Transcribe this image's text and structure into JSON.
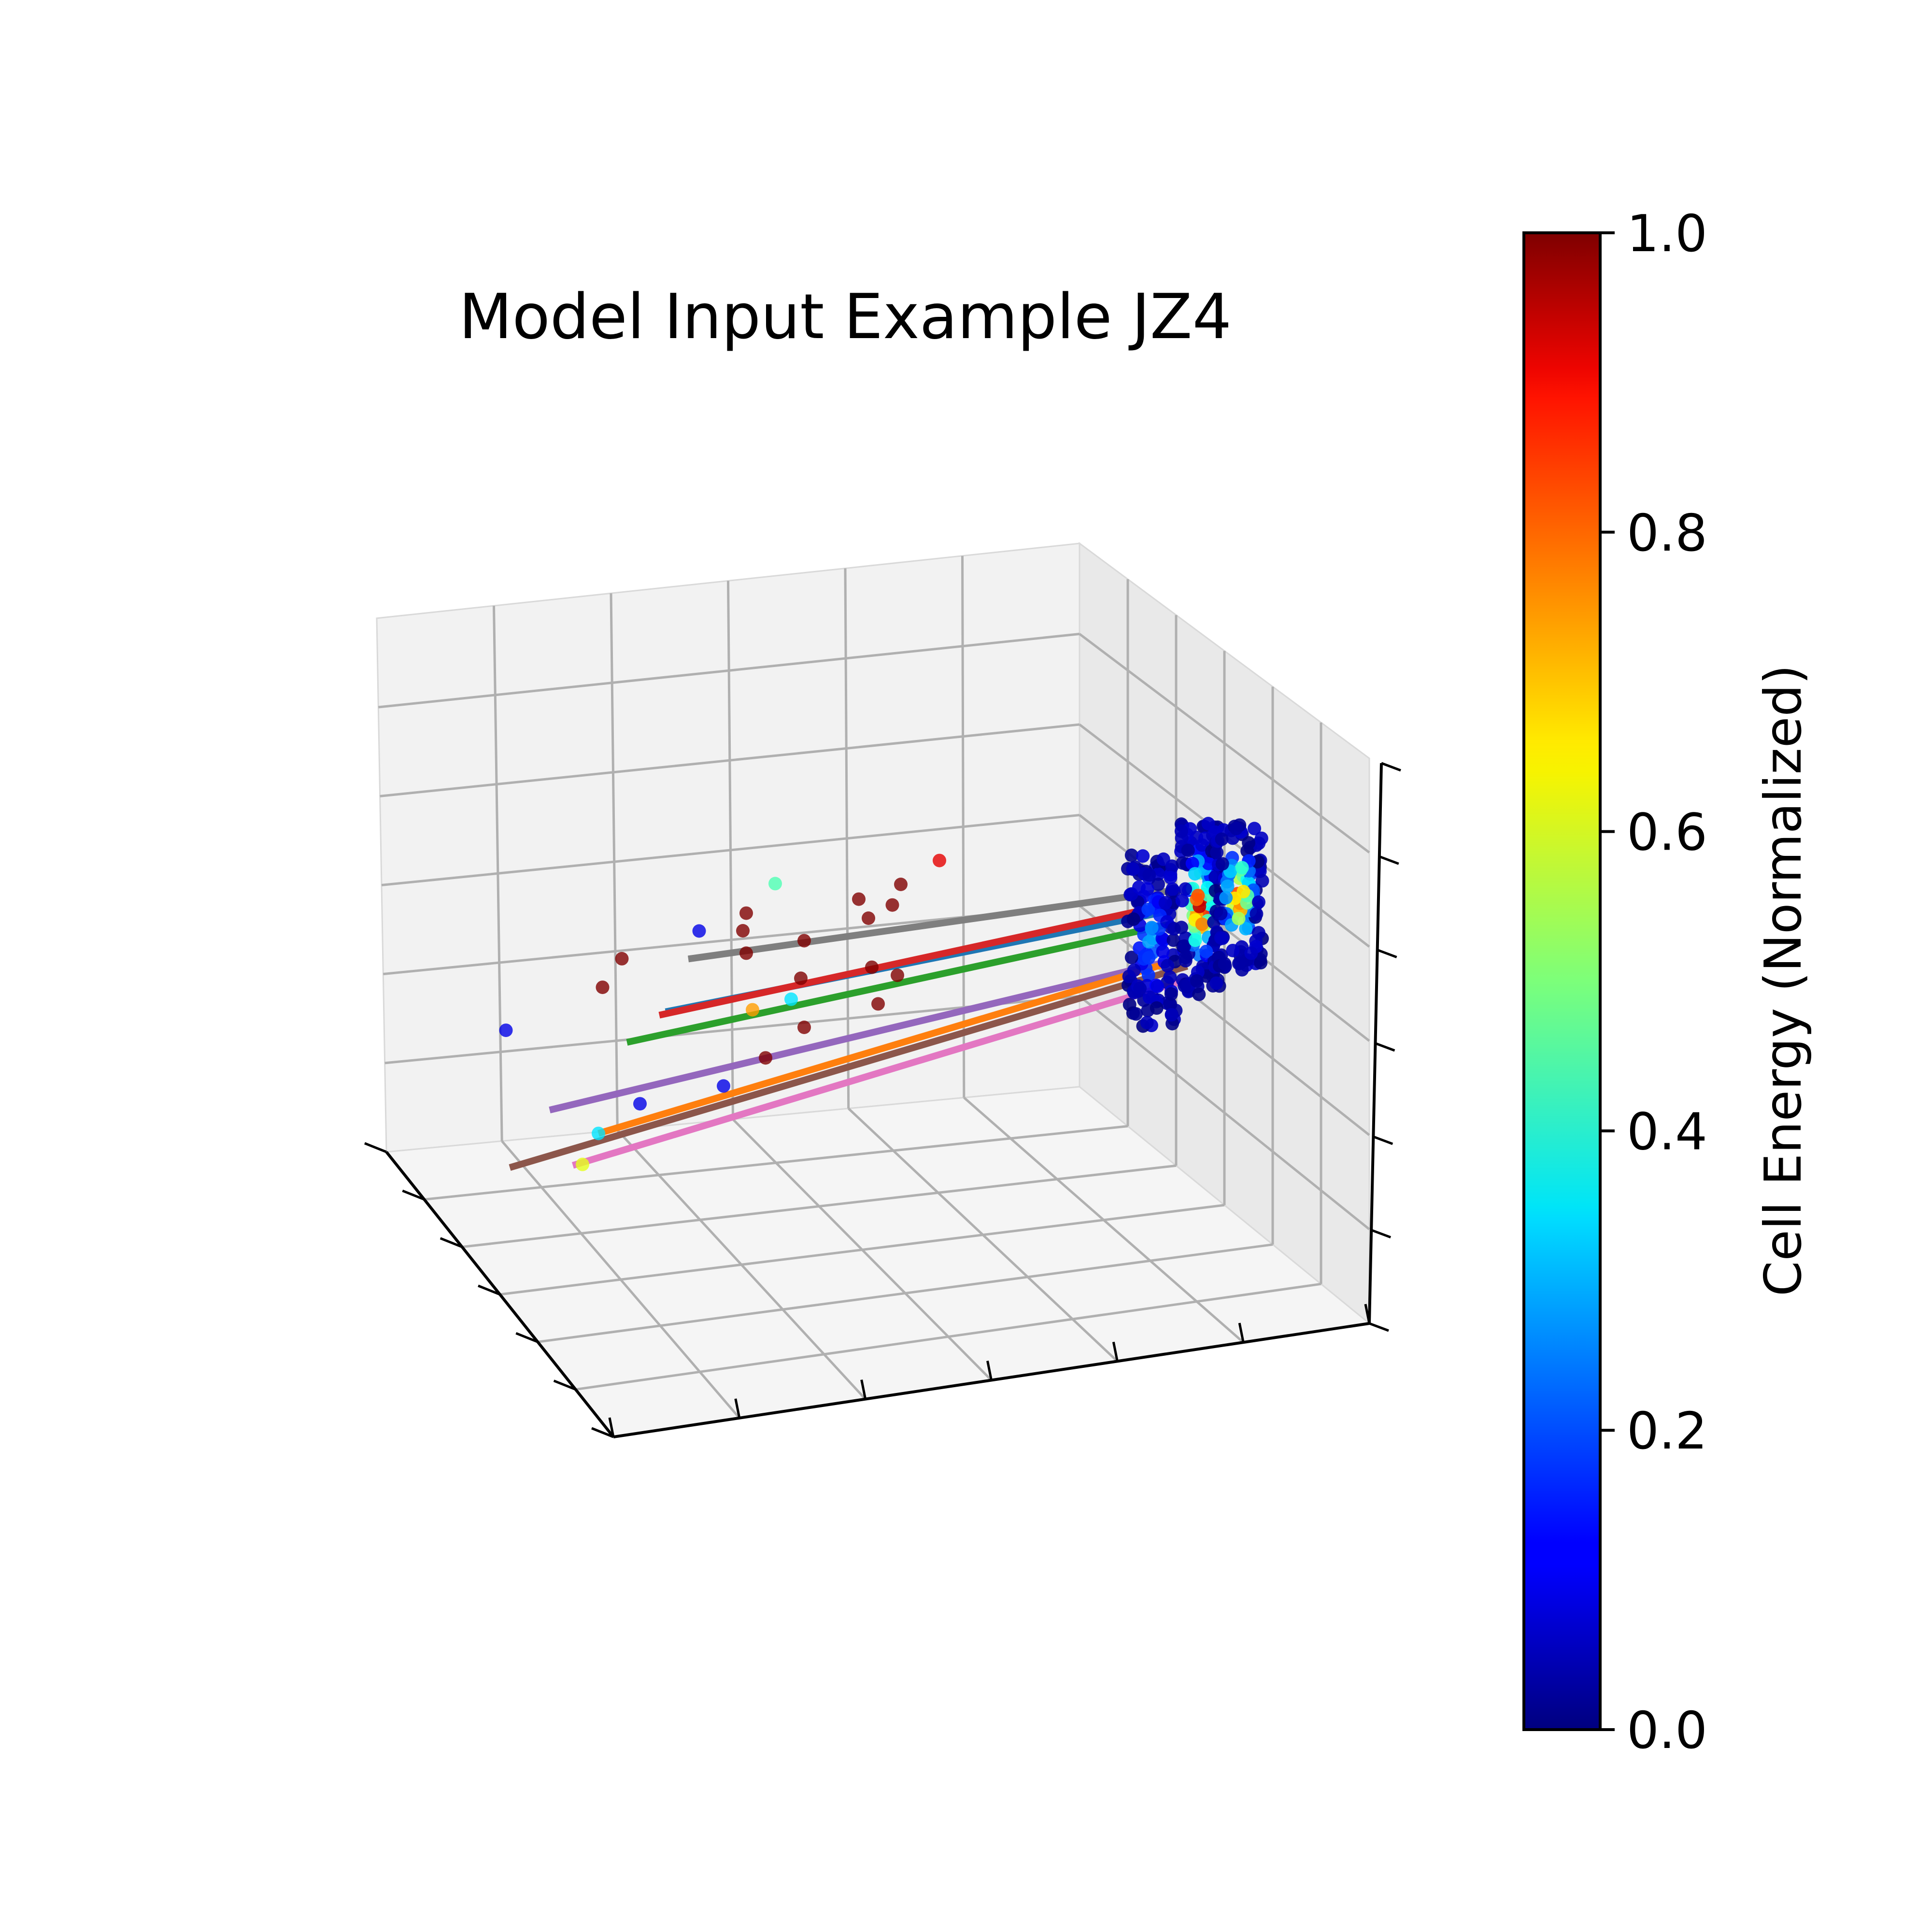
{
  "chart_data": {
    "type": "scatter",
    "projection": "3d",
    "title": "Model Input Example JZ4",
    "xlabel": "",
    "ylabel": "",
    "zlabel": "",
    "tick_labels_shown": false,
    "grid": true,
    "pane_color": "#f2f2f2",
    "grid_color": "#b0b0b0",
    "colorbar": {
      "label": "Cell Energy (Normalized)",
      "colormap": "jet",
      "range": [
        0.0,
        1.0
      ],
      "ticks": [
        "0.0",
        "0.2",
        "0.4",
        "0.6",
        "0.8",
        "1.0"
      ]
    },
    "tracks": [
      {
        "color": "#7f7f7f",
        "x0": 0.36,
        "y0": 0.7,
        "z0": 0.52,
        "x1": 0.86,
        "y1": 0.7,
        "z1": 0.55
      },
      {
        "color": "#1f77b4",
        "x0": 0.34,
        "y0": 0.72,
        "z0": 0.44,
        "x1": 0.86,
        "y1": 0.7,
        "z1": 0.52
      },
      {
        "color": "#d62728",
        "x0": 0.33,
        "y0": 0.7,
        "z0": 0.44,
        "x1": 0.86,
        "y1": 0.7,
        "z1": 0.53
      },
      {
        "color": "#2ca02c",
        "x0": 0.3,
        "y0": 0.72,
        "z0": 0.4,
        "x1": 0.86,
        "y1": 0.7,
        "z1": 0.5
      },
      {
        "color": "#9467bd",
        "x0": 0.22,
        "y0": 0.72,
        "z0": 0.31,
        "x1": 0.86,
        "y1": 0.72,
        "z1": 0.44
      },
      {
        "color": "#ff7f0e",
        "x0": 0.26,
        "y0": 0.66,
        "z0": 0.28,
        "x1": 0.86,
        "y1": 0.75,
        "z1": 0.43
      },
      {
        "color": "#8c564b",
        "x0": 0.17,
        "y0": 0.67,
        "z0": 0.24,
        "x1": 0.88,
        "y1": 0.72,
        "z1": 0.43
      },
      {
        "color": "#e377c2",
        "x0": 0.23,
        "y0": 0.64,
        "z0": 0.24,
        "x1": 0.88,
        "y1": 0.72,
        "z1": 0.41
      }
    ],
    "loose_cells": [
      {
        "x": 0.62,
        "y": 0.7,
        "z": 0.63,
        "e": 0.9
      },
      {
        "x": 0.45,
        "y": 0.7,
        "z": 0.62,
        "e": 0.45
      },
      {
        "x": 0.58,
        "y": 0.7,
        "z": 0.6,
        "e": 1.0
      },
      {
        "x": 0.42,
        "y": 0.7,
        "z": 0.58,
        "e": 1.0
      },
      {
        "x": 0.54,
        "y": 0.72,
        "z": 0.58,
        "e": 1.0
      },
      {
        "x": 0.58,
        "y": 0.75,
        "z": 0.56,
        "e": 1.0
      },
      {
        "x": 0.38,
        "y": 0.75,
        "z": 0.55,
        "e": 0.1
      },
      {
        "x": 0.42,
        "y": 0.72,
        "z": 0.55,
        "e": 1.0
      },
      {
        "x": 0.55,
        "y": 0.72,
        "z": 0.55,
        "e": 1.0
      },
      {
        "x": 0.3,
        "y": 0.75,
        "z": 0.52,
        "e": 1.0
      },
      {
        "x": 0.48,
        "y": 0.7,
        "z": 0.53,
        "e": 1.0
      },
      {
        "x": 0.42,
        "y": 0.7,
        "z": 0.52,
        "e": 1.0
      },
      {
        "x": 0.55,
        "y": 0.7,
        "z": 0.48,
        "e": 1.0
      },
      {
        "x": 0.28,
        "y": 0.75,
        "z": 0.48,
        "e": 1.0
      },
      {
        "x": 0.48,
        "y": 0.72,
        "z": 0.47,
        "e": 1.0
      },
      {
        "x": 0.58,
        "y": 0.72,
        "z": 0.46,
        "e": 1.0
      },
      {
        "x": 0.47,
        "y": 0.72,
        "z": 0.44,
        "e": 0.35
      },
      {
        "x": 0.18,
        "y": 0.75,
        "z": 0.43,
        "e": 0.1
      },
      {
        "x": 0.43,
        "y": 0.72,
        "z": 0.43,
        "e": 0.72
      },
      {
        "x": 0.56,
        "y": 0.72,
        "z": 0.42,
        "e": 1.0
      },
      {
        "x": 0.48,
        "y": 0.7,
        "z": 0.4,
        "e": 1.0
      },
      {
        "x": 0.44,
        "y": 0.7,
        "z": 0.36,
        "e": 1.0
      },
      {
        "x": 0.4,
        "y": 0.72,
        "z": 0.32,
        "e": 0.1
      },
      {
        "x": 0.31,
        "y": 0.7,
        "z": 0.31,
        "e": 0.1
      },
      {
        "x": 0.26,
        "y": 0.66,
        "z": 0.28,
        "e": 0.35
      },
      {
        "x": 0.24,
        "y": 0.64,
        "z": 0.24,
        "e": 0.6
      }
    ],
    "calorimeter_clusters": [
      {
        "x": 0.84,
        "y": 0.7,
        "z": 0.48,
        "width": 0.05,
        "height": 0.26,
        "n": 120,
        "core_e": 0.25
      },
      {
        "x": 0.89,
        "y": 0.7,
        "z": 0.52,
        "width": 0.04,
        "height": 0.26,
        "n": 140,
        "core_e": 1.0
      },
      {
        "x": 0.93,
        "y": 0.7,
        "z": 0.53,
        "width": 0.05,
        "height": 0.22,
        "n": 130,
        "core_e": 0.85
      }
    ]
  }
}
